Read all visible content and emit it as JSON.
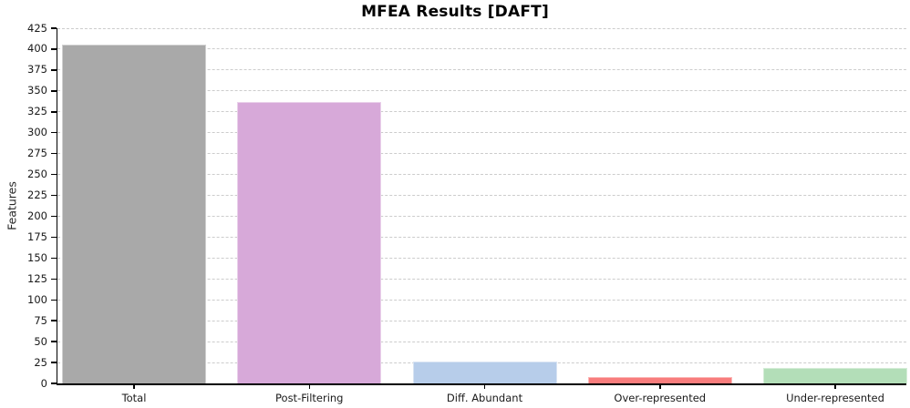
{
  "title": "MFEA Results [DAFT]",
  "chart_data": {
    "type": "bar",
    "title": "MFEA Results [DAFT]",
    "xlabel": "",
    "ylabel": "Features",
    "categories": [
      "Total",
      "Post-Filtering",
      "Diff. Abundant",
      "Over-represented",
      "Under-represented"
    ],
    "values": [
      405,
      337,
      26,
      8,
      18
    ],
    "bar_colors": [
      "#a9a9a9",
      "#d7a9d9",
      "#b7cdea",
      "#f87d7d",
      "#b3deb8"
    ],
    "ylim": [
      0,
      425
    ],
    "ytick_step": 25,
    "yticks": [
      0,
      25,
      50,
      75,
      100,
      125,
      150,
      175,
      200,
      225,
      250,
      275,
      300,
      325,
      350,
      375,
      400,
      425
    ],
    "grid": "horizontal-dashed",
    "gridline_color": "#cccccc",
    "legend": "none",
    "axis_color": "#000000"
  }
}
